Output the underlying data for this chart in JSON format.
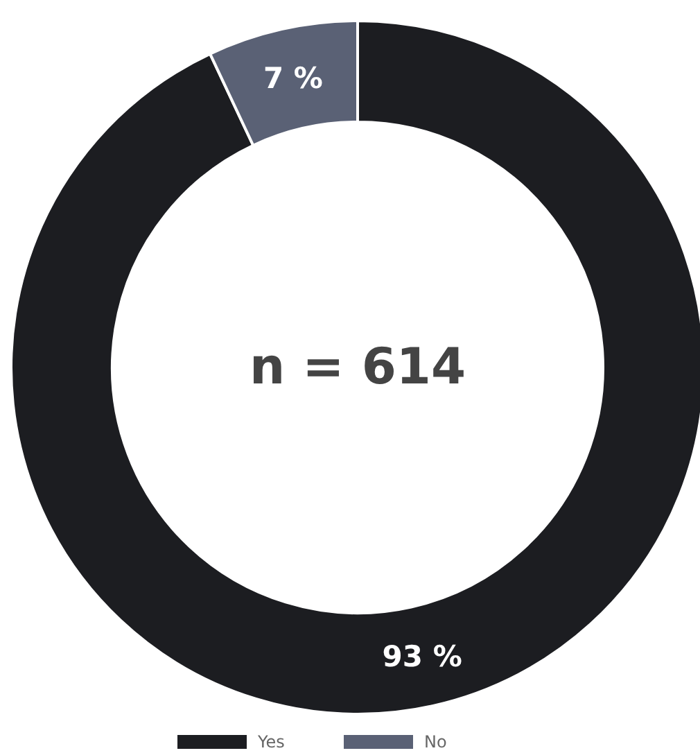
{
  "chart_data": {
    "type": "donut",
    "categories": [
      "Yes",
      "No"
    ],
    "values": [
      93,
      7
    ],
    "colors": [
      "#1c1d21",
      "#5a6175"
    ],
    "value_labels": [
      "93 %",
      "7 %"
    ],
    "annotations": [
      "n = 614"
    ],
    "legend": "bottom"
  }
}
